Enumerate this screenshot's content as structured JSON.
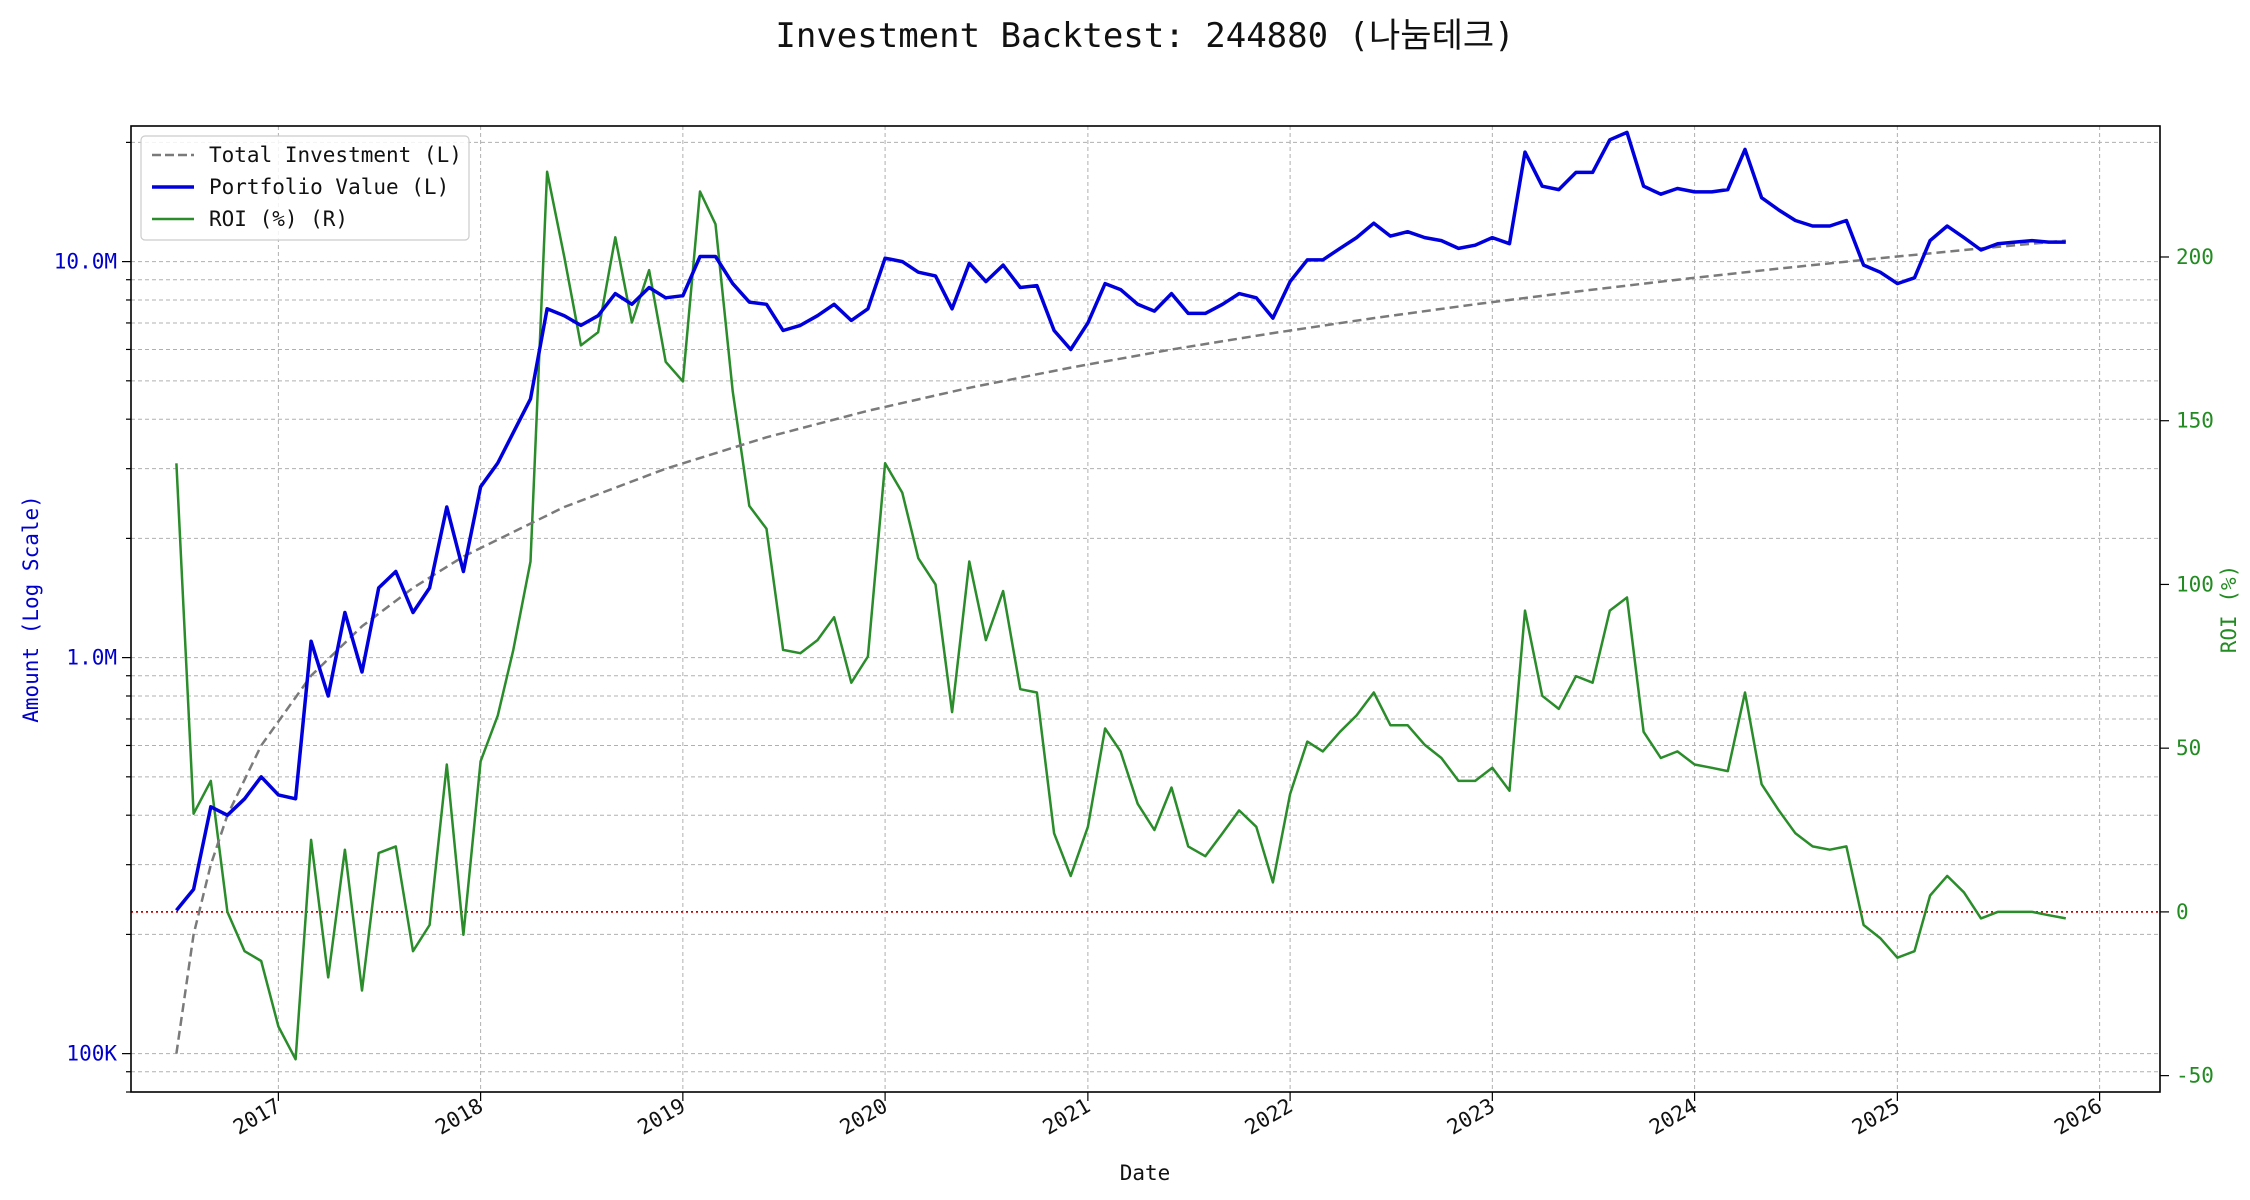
{
  "chart_data": {
    "type": "line",
    "title": "Investment Backtest: 244880 (나눔테크)",
    "xlabel": "Date",
    "ylabel_left": "Amount (Log Scale)",
    "ylabel_right": "ROI (%)",
    "left_axis": {
      "scale": "log",
      "ylim": [
        80000,
        22000000
      ],
      "ticks": [
        {
          "value": 100000,
          "label": "100K"
        },
        {
          "value": 1000000,
          "label": "1.0M"
        },
        {
          "value": 10000000,
          "label": "10.0M"
        }
      ],
      "color": "#0000cc"
    },
    "right_axis": {
      "scale": "linear",
      "ylim": [
        -55,
        240
      ],
      "ticks": [
        -50,
        0,
        50,
        100,
        150,
        200
      ],
      "color": "#228b22"
    },
    "xlim": [
      "2016-04-10",
      "2026-04-20"
    ],
    "x_ticks": [
      "2017",
      "2018",
      "2019",
      "2020",
      "2021",
      "2022",
      "2023",
      "2024",
      "2025",
      "2026"
    ],
    "grid": true,
    "legend_position": "top-left",
    "zero_line": {
      "axis": "right",
      "value": 0,
      "color": "#cc0000",
      "style": "dotted"
    },
    "series": [
      {
        "name": "Total Investment (L)",
        "axis": "left",
        "color": "#7a7a7a",
        "style": "dashed",
        "points": [
          [
            "2016-07-01",
            100000
          ],
          [
            "2016-08-01",
            200000
          ],
          [
            "2016-09-01",
            300000
          ],
          [
            "2016-10-01",
            400000
          ],
          [
            "2016-12-01",
            600000
          ],
          [
            "2017-03-01",
            900000
          ],
          [
            "2017-06-01",
            1200000
          ],
          [
            "2017-09-01",
            1500000
          ],
          [
            "2017-12-01",
            1800000
          ],
          [
            "2018-06-01",
            2400000
          ],
          [
            "2018-12-01",
            3000000
          ],
          [
            "2019-06-01",
            3600000
          ],
          [
            "2019-12-01",
            4200000
          ],
          [
            "2020-06-01",
            4800000
          ],
          [
            "2020-12-01",
            5400000
          ],
          [
            "2021-06-01",
            6000000
          ],
          [
            "2021-12-01",
            6600000
          ],
          [
            "2022-06-01",
            7200000
          ],
          [
            "2022-12-01",
            7800000
          ],
          [
            "2023-06-01",
            8400000
          ],
          [
            "2023-12-01",
            9000000
          ],
          [
            "2024-06-01",
            9600000
          ],
          [
            "2024-12-01",
            10200000
          ],
          [
            "2025-06-01",
            10800000
          ],
          [
            "2025-11-01",
            11300000
          ]
        ]
      },
      {
        "name": "Portfolio Value (L)",
        "axis": "left",
        "color": "#0000dd",
        "style": "solid",
        "points": [
          [
            "2016-07-01",
            230000
          ],
          [
            "2016-08-01",
            260000
          ],
          [
            "2016-09-01",
            420000
          ],
          [
            "2016-10-01",
            400000
          ],
          [
            "2016-11-01",
            440000
          ],
          [
            "2016-12-01",
            500000
          ],
          [
            "2017-01-01",
            450000
          ],
          [
            "2017-02-01",
            440000
          ],
          [
            "2017-03-01",
            1100000
          ],
          [
            "2017-04-01",
            800000
          ],
          [
            "2017-05-01",
            1300000
          ],
          [
            "2017-06-01",
            920000
          ],
          [
            "2017-07-01",
            1500000
          ],
          [
            "2017-08-01",
            1650000
          ],
          [
            "2017-09-01",
            1300000
          ],
          [
            "2017-10-01",
            1500000
          ],
          [
            "2017-11-01",
            2400000
          ],
          [
            "2017-12-01",
            1650000
          ],
          [
            "2018-01-01",
            2700000
          ],
          [
            "2018-02-01",
            3100000
          ],
          [
            "2018-03-01",
            3700000
          ],
          [
            "2018-04-01",
            4500000
          ],
          [
            "2018-05-01",
            7600000
          ],
          [
            "2018-06-01",
            7300000
          ],
          [
            "2018-07-01",
            6900000
          ],
          [
            "2018-08-01",
            7300000
          ],
          [
            "2018-09-01",
            8300000
          ],
          [
            "2018-10-01",
            7800000
          ],
          [
            "2018-11-01",
            8600000
          ],
          [
            "2018-12-01",
            8100000
          ],
          [
            "2019-01-01",
            8200000
          ],
          [
            "2019-02-01",
            10300000
          ],
          [
            "2019-03-01",
            10300000
          ],
          [
            "2019-04-01",
            8800000
          ],
          [
            "2019-05-01",
            7900000
          ],
          [
            "2019-06-01",
            7800000
          ],
          [
            "2019-07-01",
            6700000
          ],
          [
            "2019-08-01",
            6900000
          ],
          [
            "2019-09-01",
            7300000
          ],
          [
            "2019-10-01",
            7800000
          ],
          [
            "2019-11-01",
            7100000
          ],
          [
            "2019-12-01",
            7600000
          ],
          [
            "2020-01-01",
            10200000
          ],
          [
            "2020-02-01",
            10000000
          ],
          [
            "2020-03-01",
            9400000
          ],
          [
            "2020-04-01",
            9200000
          ],
          [
            "2020-05-01",
            7600000
          ],
          [
            "2020-06-01",
            9900000
          ],
          [
            "2020-07-01",
            8900000
          ],
          [
            "2020-08-01",
            9800000
          ],
          [
            "2020-09-01",
            8600000
          ],
          [
            "2020-10-01",
            8700000
          ],
          [
            "2020-11-01",
            6700000
          ],
          [
            "2020-12-01",
            6000000
          ],
          [
            "2021-01-01",
            7000000
          ],
          [
            "2021-02-01",
            8800000
          ],
          [
            "2021-03-01",
            8500000
          ],
          [
            "2021-04-01",
            7800000
          ],
          [
            "2021-05-01",
            7500000
          ],
          [
            "2021-06-01",
            8300000
          ],
          [
            "2021-07-01",
            7400000
          ],
          [
            "2021-08-01",
            7400000
          ],
          [
            "2021-09-01",
            7800000
          ],
          [
            "2021-10-01",
            8300000
          ],
          [
            "2021-11-01",
            8100000
          ],
          [
            "2021-12-01",
            7200000
          ],
          [
            "2022-01-01",
            8900000
          ],
          [
            "2022-02-01",
            10100000
          ],
          [
            "2022-03-01",
            10100000
          ],
          [
            "2022-04-01",
            10800000
          ],
          [
            "2022-05-01",
            11500000
          ],
          [
            "2022-06-01",
            12500000
          ],
          [
            "2022-07-01",
            11600000
          ],
          [
            "2022-08-01",
            11900000
          ],
          [
            "2022-09-01",
            11500000
          ],
          [
            "2022-10-01",
            11300000
          ],
          [
            "2022-11-01",
            10800000
          ],
          [
            "2022-12-01",
            11000000
          ],
          [
            "2023-01-01",
            11500000
          ],
          [
            "2023-02-01",
            11100000
          ],
          [
            "2023-03-01",
            18900000
          ],
          [
            "2023-04-01",
            15500000
          ],
          [
            "2023-05-01",
            15200000
          ],
          [
            "2023-06-01",
            16800000
          ],
          [
            "2023-07-01",
            16800000
          ],
          [
            "2023-08-01",
            20300000
          ],
          [
            "2023-09-01",
            21200000
          ],
          [
            "2023-10-01",
            15500000
          ],
          [
            "2023-11-01",
            14800000
          ],
          [
            "2023-12-01",
            15300000
          ],
          [
            "2024-01-01",
            15000000
          ],
          [
            "2024-02-01",
            15000000
          ],
          [
            "2024-03-01",
            15200000
          ],
          [
            "2024-04-01",
            19200000
          ],
          [
            "2024-05-01",
            14500000
          ],
          [
            "2024-06-01",
            13500000
          ],
          [
            "2024-07-01",
            12700000
          ],
          [
            "2024-08-01",
            12300000
          ],
          [
            "2024-09-01",
            12300000
          ],
          [
            "2024-10-01",
            12700000
          ],
          [
            "2024-11-01",
            9800000
          ],
          [
            "2024-12-01",
            9400000
          ],
          [
            "2025-01-01",
            8800000
          ],
          [
            "2025-02-01",
            9100000
          ],
          [
            "2025-03-01",
            11300000
          ],
          [
            "2025-04-01",
            12300000
          ],
          [
            "2025-05-01",
            11500000
          ],
          [
            "2025-06-01",
            10700000
          ],
          [
            "2025-07-01",
            11100000
          ],
          [
            "2025-08-01",
            11200000
          ],
          [
            "2025-09-01",
            11300000
          ],
          [
            "2025-10-01",
            11200000
          ],
          [
            "2025-11-01",
            11200000
          ]
        ]
      },
      {
        "name": "ROI (%) (R)",
        "axis": "right",
        "color": "#2a8c2a",
        "style": "solid",
        "points": [
          [
            "2016-07-01",
            137
          ],
          [
            "2016-08-01",
            30
          ],
          [
            "2016-09-01",
            40
          ],
          [
            "2016-10-01",
            0
          ],
          [
            "2016-11-01",
            -12
          ],
          [
            "2016-12-01",
            -15
          ],
          [
            "2017-01-01",
            -35
          ],
          [
            "2017-02-01",
            -45
          ],
          [
            "2017-03-01",
            22
          ],
          [
            "2017-04-01",
            -20
          ],
          [
            "2017-05-01",
            19
          ],
          [
            "2017-06-01",
            -24
          ],
          [
            "2017-07-01",
            18
          ],
          [
            "2017-08-01",
            20
          ],
          [
            "2017-09-01",
            -12
          ],
          [
            "2017-10-01",
            -4
          ],
          [
            "2017-11-01",
            45
          ],
          [
            "2017-12-01",
            -7
          ],
          [
            "2018-01-01",
            46
          ],
          [
            "2018-02-01",
            60
          ],
          [
            "2018-03-01",
            80
          ],
          [
            "2018-04-01",
            107
          ],
          [
            "2018-05-01",
            226
          ],
          [
            "2018-06-01",
            200
          ],
          [
            "2018-07-01",
            173
          ],
          [
            "2018-08-01",
            177
          ],
          [
            "2018-09-01",
            206
          ],
          [
            "2018-10-01",
            180
          ],
          [
            "2018-11-01",
            196
          ],
          [
            "2018-12-01",
            168
          ],
          [
            "2019-01-01",
            162
          ],
          [
            "2019-02-01",
            220
          ],
          [
            "2019-03-01",
            210
          ],
          [
            "2019-04-01",
            159
          ],
          [
            "2019-05-01",
            124
          ],
          [
            "2019-06-01",
            117
          ],
          [
            "2019-07-01",
            80
          ],
          [
            "2019-08-01",
            79
          ],
          [
            "2019-09-01",
            83
          ],
          [
            "2019-10-01",
            90
          ],
          [
            "2019-11-01",
            70
          ],
          [
            "2019-12-01",
            78
          ],
          [
            "2020-01-01",
            137
          ],
          [
            "2020-02-01",
            128
          ],
          [
            "2020-03-01",
            108
          ],
          [
            "2020-04-01",
            100
          ],
          [
            "2020-05-01",
            61
          ],
          [
            "2020-06-01",
            107
          ],
          [
            "2020-07-01",
            83
          ],
          [
            "2020-08-01",
            98
          ],
          [
            "2020-09-01",
            68
          ],
          [
            "2020-10-01",
            67
          ],
          [
            "2020-11-01",
            24
          ],
          [
            "2020-12-01",
            11
          ],
          [
            "2021-01-01",
            26
          ],
          [
            "2021-02-01",
            56
          ],
          [
            "2021-03-01",
            49
          ],
          [
            "2021-04-01",
            33
          ],
          [
            "2021-05-01",
            25
          ],
          [
            "2021-06-01",
            38
          ],
          [
            "2021-07-01",
            20
          ],
          [
            "2021-08-01",
            17
          ],
          [
            "2021-09-01",
            24
          ],
          [
            "2021-10-01",
            31
          ],
          [
            "2021-11-01",
            26
          ],
          [
            "2021-12-01",
            9
          ],
          [
            "2022-01-01",
            36
          ],
          [
            "2022-02-01",
            52
          ],
          [
            "2022-03-01",
            49
          ],
          [
            "2022-04-01",
            55
          ],
          [
            "2022-05-01",
            60
          ],
          [
            "2022-06-01",
            67
          ],
          [
            "2022-07-01",
            57
          ],
          [
            "2022-08-01",
            57
          ],
          [
            "2022-09-01",
            51
          ],
          [
            "2022-10-01",
            47
          ],
          [
            "2022-11-01",
            40
          ],
          [
            "2022-12-01",
            40
          ],
          [
            "2023-01-01",
            44
          ],
          [
            "2023-02-01",
            37
          ],
          [
            "2023-03-01",
            92
          ],
          [
            "2023-04-01",
            66
          ],
          [
            "2023-05-01",
            62
          ],
          [
            "2023-06-01",
            72
          ],
          [
            "2023-07-01",
            70
          ],
          [
            "2023-08-01",
            92
          ],
          [
            "2023-09-01",
            96
          ],
          [
            "2023-10-01",
            55
          ],
          [
            "2023-11-01",
            47
          ],
          [
            "2023-12-01",
            49
          ],
          [
            "2024-01-01",
            45
          ],
          [
            "2024-02-01",
            44
          ],
          [
            "2024-03-01",
            43
          ],
          [
            "2024-04-01",
            67
          ],
          [
            "2024-05-01",
            39
          ],
          [
            "2024-06-01",
            31
          ],
          [
            "2024-07-01",
            24
          ],
          [
            "2024-08-01",
            20
          ],
          [
            "2024-09-01",
            19
          ],
          [
            "2024-10-01",
            20
          ],
          [
            "2024-11-01",
            -4
          ],
          [
            "2024-12-01",
            -8
          ],
          [
            "2025-01-01",
            -14
          ],
          [
            "2025-02-01",
            -12
          ],
          [
            "2025-03-01",
            5
          ],
          [
            "2025-04-01",
            11
          ],
          [
            "2025-05-01",
            6
          ],
          [
            "2025-06-01",
            -2
          ],
          [
            "2025-07-01",
            0
          ],
          [
            "2025-08-01",
            0
          ],
          [
            "2025-09-01",
            0
          ],
          [
            "2025-10-01",
            -1
          ],
          [
            "2025-11-01",
            -2
          ]
        ]
      }
    ]
  }
}
